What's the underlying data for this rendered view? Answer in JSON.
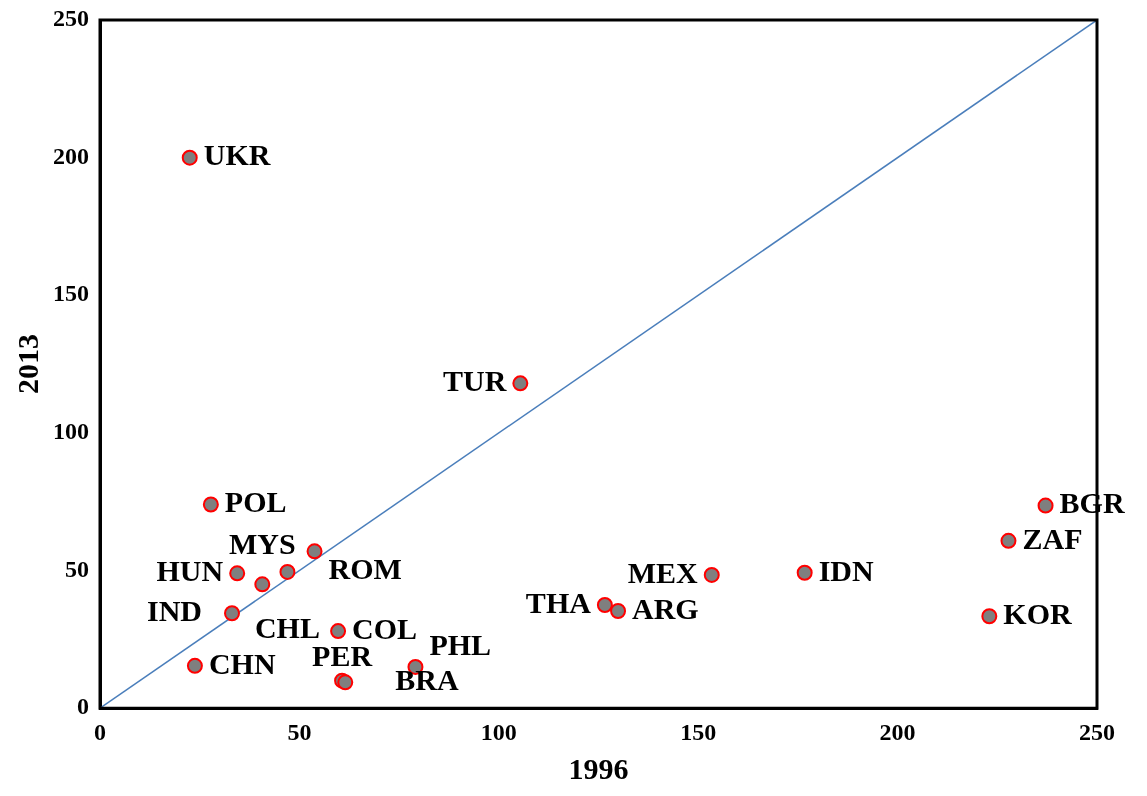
{
  "chart_data": {
    "type": "scatter",
    "xlabel": "1996",
    "ylabel": "2013",
    "xlim": [
      0,
      250
    ],
    "ylim": [
      0,
      250
    ],
    "xticks": [
      0,
      50,
      100,
      150,
      200,
      250
    ],
    "yticks": [
      0,
      50,
      100,
      150,
      200,
      250
    ],
    "legend": false,
    "marker": "circle",
    "series": [
      {
        "color": "#7f7f7f",
        "x": [
          22.5,
          105.4,
          27.8,
          53.8,
          34.4,
          47,
          40.7,
          33.1,
          59.7,
          23.8,
          60.7,
          61.5,
          79.1,
          126.6,
          129.9,
          153.4,
          176.7,
          223,
          227.8,
          237.1
        ],
        "values": [
          200,
          118,
          74,
          57,
          49,
          49.5,
          45,
          34.5,
          28,
          15.4,
          10,
          9.4,
          15,
          37.5,
          35.3,
          48.4,
          49.2,
          33.4,
          60.8,
          73.6
        ]
      },
      {
        "type": "line",
        "color": "#4a7ebb",
        "x": [
          0,
          250
        ],
        "values": [
          0,
          250
        ],
        "marker": "none"
      }
    ],
    "annotations": [
      {
        "text": "UKR",
        "x": 22.5,
        "y": 200
      },
      {
        "text": "TUR",
        "x": 105.4,
        "y": 118
      },
      {
        "text": "POL",
        "x": 27.8,
        "y": 74
      },
      {
        "text": "ROM",
        "x": 53.8,
        "y": 57
      },
      {
        "text": "HUN",
        "x": 34.4,
        "y": 49
      },
      {
        "text": "CHL",
        "x": 47,
        "y": 49.5
      },
      {
        "text": "MYS",
        "x": 40.7,
        "y": 45
      },
      {
        "text": "IND",
        "x": 33.1,
        "y": 34.5
      },
      {
        "text": "COL",
        "x": 59.7,
        "y": 28
      },
      {
        "text": "CHN",
        "x": 23.8,
        "y": 15.4
      },
      {
        "text": "PER",
        "x": 60.7,
        "y": 10
      },
      {
        "text": "BRA",
        "x": 61.5,
        "y": 9.4
      },
      {
        "text": "PHL",
        "x": 79.1,
        "y": 15
      },
      {
        "text": "THA",
        "x": 126.6,
        "y": 37.5
      },
      {
        "text": "ARG",
        "x": 129.9,
        "y": 35.3
      },
      {
        "text": "MEX",
        "x": 153.4,
        "y": 48.4
      },
      {
        "text": "IDN",
        "x": 176.7,
        "y": 49.2
      },
      {
        "text": "KOR",
        "x": 223,
        "y": 33.4
      },
      {
        "text": "ZAF",
        "x": 227.8,
        "y": 60.8
      },
      {
        "text": "BGR",
        "x": 237.1,
        "y": 73.6
      }
    ]
  }
}
